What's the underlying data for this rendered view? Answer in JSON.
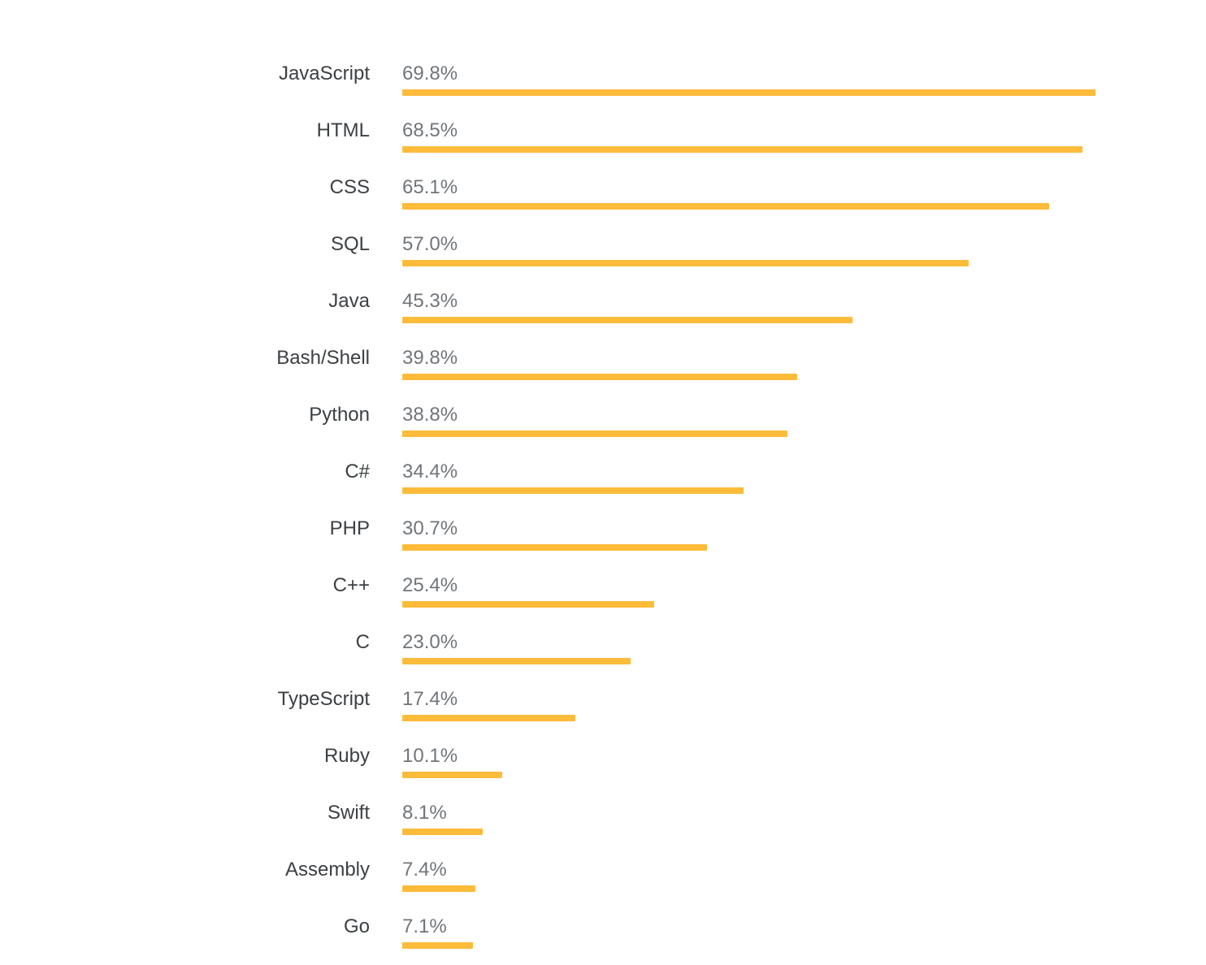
{
  "chart_data": {
    "type": "bar",
    "orientation": "horizontal",
    "title": "",
    "xlabel": "",
    "ylabel": "",
    "xlim": [
      0,
      80.9
    ],
    "grid": false,
    "legend": false,
    "categories": [
      "JavaScript",
      "HTML",
      "CSS",
      "SQL",
      "Java",
      "Bash/Shell",
      "Python",
      "C#",
      "PHP",
      "C++",
      "C",
      "TypeScript",
      "Ruby",
      "Swift",
      "Assembly",
      "Go"
    ],
    "values": [
      69.8,
      68.5,
      65.1,
      57.0,
      45.3,
      39.8,
      38.8,
      34.4,
      30.7,
      25.4,
      23.0,
      17.4,
      10.1,
      8.1,
      7.4,
      7.1
    ],
    "value_labels": [
      "69.8%",
      "68.5%",
      "65.1%",
      "57.0%",
      "45.3%",
      "39.8%",
      "38.8%",
      "34.4%",
      "30.7%",
      "25.4%",
      "23.0%",
      "17.4%",
      "10.1%",
      "8.1%",
      "7.4%",
      "7.1%"
    ],
    "colors": {
      "bar": "#FDBB3A",
      "category_label": "#3C4043",
      "value_label": "#70757A",
      "background": "#FFFFFF"
    }
  }
}
